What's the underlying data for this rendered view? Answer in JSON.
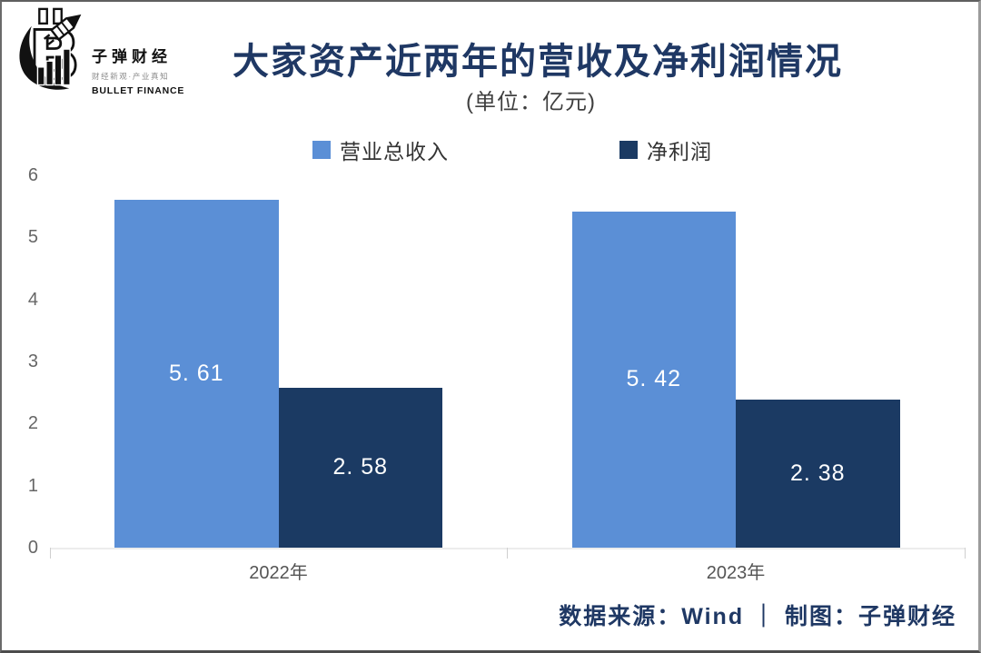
{
  "logo": {
    "brand": "子弹财经",
    "tagline": "财经新观·产业真知",
    "brand_en": "BULLET FINANCE"
  },
  "header": {
    "title": "大家资产近两年的营收及净利润情况",
    "subtitle": "(单位：亿元)"
  },
  "chart_data": {
    "type": "bar",
    "title": "大家资产近两年的营收及净利润情况",
    "unit_note": "(单位：亿元)",
    "categories": [
      "2022年",
      "2023年"
    ],
    "series": [
      {
        "name": "营业总收入",
        "color": "#5b8fd6",
        "values": [
          5.61,
          5.42
        ],
        "value_labels": [
          "5. 61",
          "5. 42"
        ]
      },
      {
        "name": "净利润",
        "color": "#1b3a63",
        "values": [
          2.58,
          2.38
        ],
        "value_labels": [
          "2. 58",
          "2. 38"
        ]
      }
    ],
    "ylim": [
      0,
      6
    ],
    "yticks": [
      0,
      1,
      2,
      3,
      4,
      5,
      6
    ],
    "grid": false,
    "legend_position": "top-center",
    "value_label_color": "#ffffff"
  },
  "footer": {
    "source_text": "数据来源：Wind ｜ 制图：子弹财经"
  },
  "colors": {
    "title_text": "#1f3864",
    "series_revenue": "#5b8fd6",
    "series_profit": "#1b3a63",
    "axis_text": "#666666",
    "category_text": "#555555",
    "baseline": "#ececec",
    "footer_text": "#1f3864"
  }
}
